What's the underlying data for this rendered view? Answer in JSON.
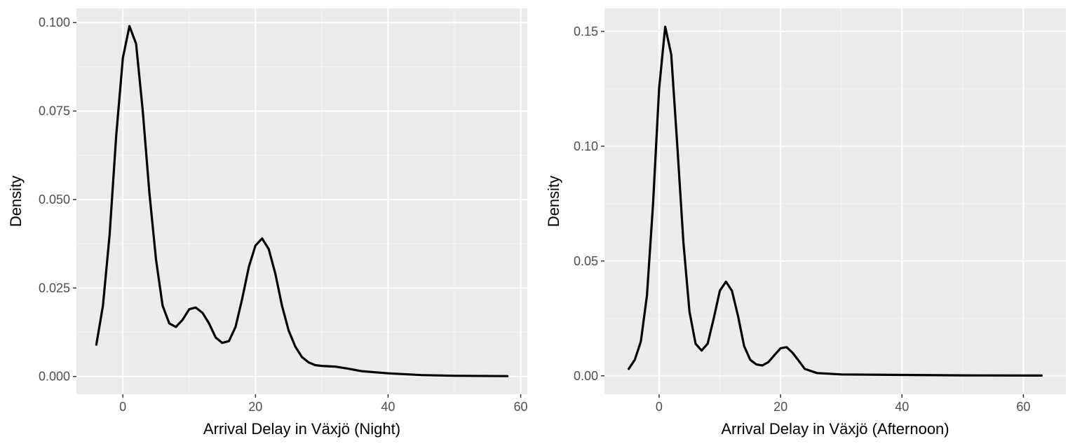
{
  "colors": {
    "panel_background": "#ebebeb",
    "grid_major": "#ffffff",
    "grid_minor": "#f5f5f5",
    "line": "#000000",
    "tick_label": "#4d4d4d"
  },
  "chart_data": [
    {
      "type": "line",
      "title": "",
      "xlabel": "Arrival Delay in Växjö (Night)",
      "ylabel": "Density",
      "xlim": [
        -7,
        61
      ],
      "ylim": [
        -0.005,
        0.104
      ],
      "x_ticks": [
        0,
        20,
        40,
        60
      ],
      "x_tick_labels": [
        "0",
        "20",
        "40",
        "60"
      ],
      "y_ticks": [
        0,
        0.025,
        0.05,
        0.075,
        0.1
      ],
      "y_tick_labels": [
        "0.000",
        "0.025",
        "0.050",
        "0.075",
        "0.100"
      ],
      "grid": true,
      "legend": "none",
      "series": [
        {
          "points": [
            [
              -4,
              0.009
            ],
            [
              -3,
              0.02
            ],
            [
              -2,
              0.04
            ],
            [
              -1,
              0.068
            ],
            [
              0,
              0.09
            ],
            [
              1,
              0.099
            ],
            [
              2,
              0.094
            ],
            [
              3,
              0.075
            ],
            [
              4,
              0.052
            ],
            [
              5,
              0.033
            ],
            [
              6,
              0.02
            ],
            [
              7,
              0.015
            ],
            [
              8,
              0.014
            ],
            [
              9,
              0.016
            ],
            [
              10,
              0.019
            ],
            [
              11,
              0.0195
            ],
            [
              12,
              0.018
            ],
            [
              13,
              0.015
            ],
            [
              14,
              0.011
            ],
            [
              15,
              0.0095
            ],
            [
              16,
              0.01
            ],
            [
              17,
              0.014
            ],
            [
              18,
              0.022
            ],
            [
              19,
              0.031
            ],
            [
              20,
              0.037
            ],
            [
              21,
              0.039
            ],
            [
              22,
              0.036
            ],
            [
              23,
              0.029
            ],
            [
              24,
              0.02
            ],
            [
              25,
              0.013
            ],
            [
              26,
              0.0085
            ],
            [
              27,
              0.0055
            ],
            [
              28,
              0.004
            ],
            [
              29,
              0.0032
            ],
            [
              30,
              0.003
            ],
            [
              32,
              0.0028
            ],
            [
              34,
              0.0022
            ],
            [
              36,
              0.0015
            ],
            [
              40,
              0.0009
            ],
            [
              45,
              0.0004
            ],
            [
              50,
              0.0002
            ],
            [
              58,
              0.0001
            ]
          ]
        }
      ]
    },
    {
      "type": "line",
      "title": "",
      "xlabel": "Arrival Delay in Växjö (Afternoon)",
      "ylabel": "Density",
      "xlim": [
        -9,
        67
      ],
      "ylim": [
        -0.008,
        0.16
      ],
      "x_ticks": [
        0,
        20,
        40,
        60
      ],
      "x_tick_labels": [
        "0",
        "20",
        "40",
        "60"
      ],
      "y_ticks": [
        0,
        0.05,
        0.1,
        0.15
      ],
      "y_tick_labels": [
        "0.00",
        "0.05",
        "0.10",
        "0.15"
      ],
      "grid": true,
      "legend": "none",
      "series": [
        {
          "points": [
            [
              -5,
              0.003
            ],
            [
              -4,
              0.007
            ],
            [
              -3,
              0.015
            ],
            [
              -2,
              0.035
            ],
            [
              -1,
              0.075
            ],
            [
              0,
              0.125
            ],
            [
              1,
              0.152
            ],
            [
              2,
              0.14
            ],
            [
              3,
              0.1
            ],
            [
              4,
              0.058
            ],
            [
              5,
              0.028
            ],
            [
              6,
              0.014
            ],
            [
              7,
              0.011
            ],
            [
              8,
              0.014
            ],
            [
              9,
              0.025
            ],
            [
              10,
              0.037
            ],
            [
              11,
              0.041
            ],
            [
              12,
              0.037
            ],
            [
              13,
              0.026
            ],
            [
              14,
              0.013
            ],
            [
              15,
              0.007
            ],
            [
              16,
              0.005
            ],
            [
              17,
              0.0045
            ],
            [
              18,
              0.006
            ],
            [
              19,
              0.009
            ],
            [
              20,
              0.012
            ],
            [
              21,
              0.0125
            ],
            [
              22,
              0.01
            ],
            [
              23,
              0.0065
            ],
            [
              24,
              0.003
            ],
            [
              26,
              0.0012
            ],
            [
              30,
              0.0006
            ],
            [
              40,
              0.0004
            ],
            [
              50,
              0.0002
            ],
            [
              63,
              0.0001
            ]
          ]
        }
      ]
    }
  ]
}
